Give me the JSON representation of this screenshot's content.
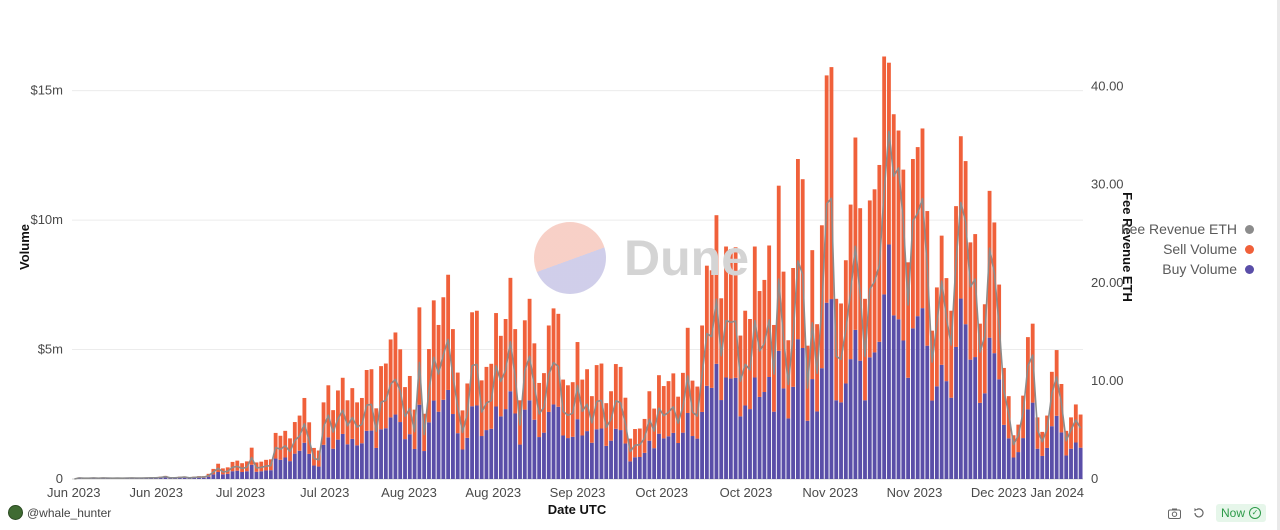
{
  "footer": {
    "author": "@whale_hunter",
    "now_label": "Now",
    "icons": [
      "camera-icon",
      "refresh-icon",
      "check-circle-icon"
    ]
  },
  "watermark": {
    "text": "Dune"
  },
  "chart_data": {
    "type": "bar",
    "stacked": true,
    "xlabel": "Date UTC",
    "ylabel": "Volume",
    "y2label": "Fee Revenue ETH",
    "ylim": [
      0,
      18000000
    ],
    "y2lim": [
      0,
      47.5
    ],
    "y_ticks": [
      "0",
      "$5m",
      "$10m",
      "$15m"
    ],
    "y_tick_values": [
      0,
      5000000,
      10000000,
      15000000
    ],
    "y2_ticks": [
      "0",
      "10.00",
      "20.00",
      "30.00",
      "40.00"
    ],
    "y2_tick_values": [
      0,
      10,
      20,
      30,
      40
    ],
    "x_ticks": [
      "Jun 2023",
      "Jun 2023",
      "Jul 2023",
      "Jul 2023",
      "Aug 2023",
      "Aug 2023",
      "Sep 2023",
      "Oct 2023",
      "Oct 2023",
      "Nov 2023",
      "Nov 2023",
      "Dec 2023",
      "Jan 2024"
    ],
    "legend": {
      "position": "right",
      "entries": [
        "Fee Revenue ETH",
        "Sell Volume",
        "Buy Volume"
      ]
    },
    "colors": {
      "buy": "#5a4ea8",
      "sell": "#f0603a",
      "fee": "#8c8c8c"
    },
    "grid": true,
    "series": [
      {
        "name": "Buy Volume",
        "type": "bar",
        "values": [
          0.0,
          0.03,
          0.02,
          0.02,
          0.03,
          0.02,
          0.03,
          0.02,
          0.02,
          0.02,
          0.02,
          0.02,
          0.03,
          0.02,
          0.02,
          0.03,
          0.03,
          0.03,
          0.04,
          0.06,
          0.03,
          0.03,
          0.04,
          0.05,
          0.03,
          0.04,
          0.05,
          0.05,
          0.09,
          0.18,
          0.27,
          0.18,
          0.2,
          0.3,
          0.32,
          0.27,
          0.3,
          0.55,
          0.28,
          0.3,
          0.33,
          0.34,
          0.79,
          0.74,
          0.83,
          0.69,
          0.98,
          1.09,
          1.4,
          0.97,
          0.52,
          0.48,
          1.32,
          1.61,
          1.17,
          1.52,
          1.74,
          1.34,
          1.55,
          1.3,
          1.38,
          1.86,
          1.87,
          1.2,
          1.92,
          1.96,
          2.38,
          2.49,
          2.2,
          1.54,
          1.73,
          1.16,
          2.87,
          1.08,
          2.19,
          3.03,
          2.6,
          3.06,
          3.44,
          2.51,
          1.77,
          1.14,
          1.59,
          2.81,
          2.84,
          1.66,
          1.89,
          1.94,
          2.8,
          2.42,
          2.7,
          3.39,
          2.53,
          1.33,
          2.68,
          3.04,
          2.29,
          1.62,
          1.79,
          2.59,
          2.88,
          2.79,
          1.68,
          1.58,
          1.63,
          2.31,
          1.68,
          1.85,
          1.4,
          1.92,
          1.95,
          1.28,
          1.48,
          1.94,
          1.89,
          1.37,
          0.68,
          0.84,
          0.85,
          1.01,
          1.48,
          1.19,
          1.75,
          1.57,
          1.65,
          1.78,
          1.39,
          1.79,
          2.55,
          1.66,
          1.56,
          2.59,
          3.6,
          3.52,
          4.45,
          3.05,
          3.92,
          3.88,
          3.91,
          2.42,
          2.84,
          2.7,
          3.92,
          3.17,
          3.36,
          3.94,
          2.6,
          4.95,
          3.5,
          2.34,
          3.56,
          5.4,
          5.06,
          2.25,
          3.86,
          2.61,
          4.28,
          6.81,
          6.95,
          3.04,
          2.96,
          3.69,
          4.63,
          5.76,
          4.57,
          3.04,
          4.7,
          4.89,
          5.3,
          7.13,
          9.06,
          6.32,
          6.17,
          5.35,
          3.91,
          5.82,
          6.29,
          6.6,
          5.15,
          3.03,
          3.58,
          4.41,
          3.78,
          3.14,
          5.1,
          6.97,
          5.98,
          4.61,
          4.71,
          2.94,
          3.31,
          5.46,
          4.86,
          3.85,
          2.09,
          1.57,
          0.83,
          1.04,
          1.58,
          2.69,
          2.95,
          1.17,
          0.89,
          1.2,
          2.04,
          2.44,
          1.8,
          0.91,
          1.17,
          1.41,
          1.21
        ]
      },
      {
        "name": "Sell Volume",
        "type": "bar",
        "values": [
          0.0,
          0.03,
          0.02,
          0.02,
          0.03,
          0.02,
          0.03,
          0.03,
          0.02,
          0.03,
          0.02,
          0.03,
          0.03,
          0.03,
          0.03,
          0.03,
          0.04,
          0.04,
          0.05,
          0.06,
          0.04,
          0.04,
          0.05,
          0.05,
          0.04,
          0.05,
          0.06,
          0.06,
          0.11,
          0.21,
          0.32,
          0.23,
          0.25,
          0.36,
          0.39,
          0.34,
          0.38,
          0.66,
          0.36,
          0.37,
          0.41,
          0.42,
          0.99,
          0.93,
          1.03,
          0.88,
          1.22,
          1.36,
          1.73,
          1.22,
          0.68,
          0.62,
          1.64,
          2.01,
          1.49,
          1.9,
          2.17,
          1.7,
          1.96,
          1.66,
          1.75,
          2.35,
          2.37,
          1.53,
          2.44,
          2.5,
          3.01,
          3.17,
          2.81,
          2.01,
          2.25,
          1.52,
          3.76,
          1.44,
          2.83,
          3.87,
          3.35,
          3.96,
          4.45,
          3.28,
          2.34,
          1.51,
          2.1,
          3.63,
          3.66,
          2.15,
          2.44,
          2.51,
          3.61,
          3.11,
          3.48,
          4.38,
          3.26,
          1.71,
          3.45,
          3.92,
          2.95,
          2.09,
          2.3,
          3.34,
          3.71,
          3.59,
          2.16,
          2.04,
          2.11,
          2.98,
          2.16,
          2.39,
          1.8,
          2.48,
          2.51,
          1.65,
          1.91,
          2.5,
          2.44,
          1.77,
          0.88,
          1.09,
          1.1,
          1.31,
          1.91,
          1.53,
          2.26,
          2.02,
          2.13,
          2.3,
          1.79,
          2.31,
          3.29,
          2.14,
          2.01,
          3.34,
          4.64,
          4.54,
          5.74,
          3.93,
          5.06,
          5.0,
          5.04,
          3.12,
          3.66,
          3.48,
          5.06,
          4.09,
          4.33,
          5.08,
          3.35,
          6.38,
          4.51,
          3.02,
          4.59,
          6.96,
          6.52,
          2.9,
          4.98,
          3.37,
          5.52,
          8.78,
          8.96,
          3.92,
          3.82,
          4.76,
          5.97,
          7.43,
          5.89,
          3.92,
          6.06,
          6.3,
          6.83,
          9.19,
          7.02,
          7.77,
          7.29,
          6.6,
          4.46,
          6.54,
          6.53,
          6.94,
          5.2,
          2.7,
          3.82,
          4.99,
          3.98,
          3.36,
          5.44,
          6.27,
          6.3,
          4.53,
          4.75,
          3.06,
          3.44,
          5.67,
          5.05,
          3.66,
          2.2,
          1.63,
          0.86,
          1.06,
          1.64,
          2.79,
          3.05,
          1.21,
          0.93,
          1.25,
          2.1,
          2.54,
          1.87,
          0.95,
          1.21,
          1.47,
          1.28
        ]
      },
      {
        "name": "Fee Revenue ETH",
        "type": "line",
        "axis": "right",
        "values": [
          0.0,
          0.11,
          0.08,
          0.08,
          0.11,
          0.08,
          0.11,
          0.09,
          0.08,
          0.09,
          0.08,
          0.09,
          0.11,
          0.09,
          0.09,
          0.11,
          0.12,
          0.12,
          0.16,
          0.23,
          0.12,
          0.12,
          0.16,
          0.19,
          0.12,
          0.16,
          0.19,
          0.19,
          0.35,
          0.7,
          1.09,
          0.71,
          0.78,
          1.19,
          1.28,
          1.07,
          1.2,
          2.18,
          1.13,
          1.19,
          1.32,
          1.36,
          3.21,
          3.03,
          3.38,
          2.8,
          3.93,
          4.38,
          5.63,
          3.92,
          2.1,
          1.95,
          5.3,
          6.5,
          4.78,
          6.12,
          7.01,
          5.42,
          6.27,
          5.29,
          5.58,
          7.53,
          7.6,
          4.86,
          7.83,
          8.01,
          9.66,
          10.16,
          9.01,
          6.37,
          7.19,
          4.82,
          11.89,
          4.53,
          9.04,
          12.41,
          10.7,
          12.65,
          14.22,
          10.47,
          7.4,
          4.74,
          6.63,
          11.57,
          11.68,
          6.82,
          7.76,
          7.98,
          11.53,
          9.94,
          11.11,
          14.0,
          10.42,
          5.5,
          11.03,
          12.51,
          9.41,
          6.64,
          7.35,
          10.66,
          11.86,
          11.47,
          6.89,
          6.49,
          6.71,
          9.52,
          6.9,
          7.62,
          5.73,
          7.9,
          8.01,
          5.25,
          6.08,
          7.97,
          7.77,
          5.63,
          2.79,
          3.45,
          3.5,
          4.16,
          6.1,
          4.88,
          7.22,
          6.45,
          6.8,
          7.36,
          5.7,
          7.37,
          10.5,
          6.83,
          6.41,
          10.66,
          14.82,
          14.5,
          18.33,
          12.56,
          16.16,
          15.97,
          16.11,
          9.96,
          11.69,
          11.12,
          16.16,
          13.05,
          13.82,
          16.23,
          10.69,
          20.38,
          14.41,
          9.64,
          14.65,
          22.23,
          20.84,
          9.27,
          15.91,
          10.77,
          17.62,
          28.04,
          28.62,
          12.51,
          12.2,
          15.21,
          19.07,
          23.72,
          18.8,
          12.51,
          19.35,
          20.12,
          21.82,
          29.36,
          35.43,
          30.86,
          31.7,
          26.32,
          17.74,
          26.32,
          27.08,
          28.58,
          21.54,
          11.92,
          15.89,
          20.17,
          16.46,
          13.65,
          22.17,
          28.18,
          26.23,
          19.58,
          20.39,
          12.93,
          14.57,
          23.53,
          20.94,
          15.72,
          8.94,
          6.71,
          3.51,
          4.43,
          6.75,
          11.52,
          12.63,
          5.0,
          3.8,
          5.11,
          8.73,
          10.41,
          7.71,
          3.9,
          4.99,
          6.02,
          5.17
        ]
      }
    ],
    "value_units": {
      "bars": "million USD",
      "line": "ETH"
    }
  }
}
